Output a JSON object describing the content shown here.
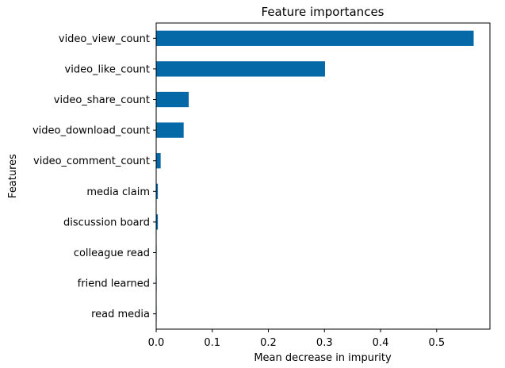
{
  "chart_data": {
    "type": "bar",
    "orientation": "horizontal",
    "title": "Feature importances",
    "xlabel": "Mean decrease in impurity",
    "ylabel": "Features",
    "categories": [
      "video_view_count",
      "video_like_count",
      "video_share_count",
      "video_download_count",
      "video_comment_count",
      "media claim",
      "discussion board",
      "colleague read",
      "friend learned",
      "read media"
    ],
    "values": [
      0.566,
      0.301,
      0.058,
      0.049,
      0.008,
      0.003,
      0.003,
      0.0005,
      0.0003,
      0.0002
    ],
    "xlim": [
      0,
      0.595
    ],
    "xticks": [
      0.0,
      0.1,
      0.2,
      0.3,
      0.4,
      0.5
    ],
    "xtick_labels": [
      "0.0",
      "0.1",
      "0.2",
      "0.3",
      "0.4",
      "0.5"
    ],
    "bar_color": "#0569a8",
    "grid": false,
    "legend": "none"
  }
}
